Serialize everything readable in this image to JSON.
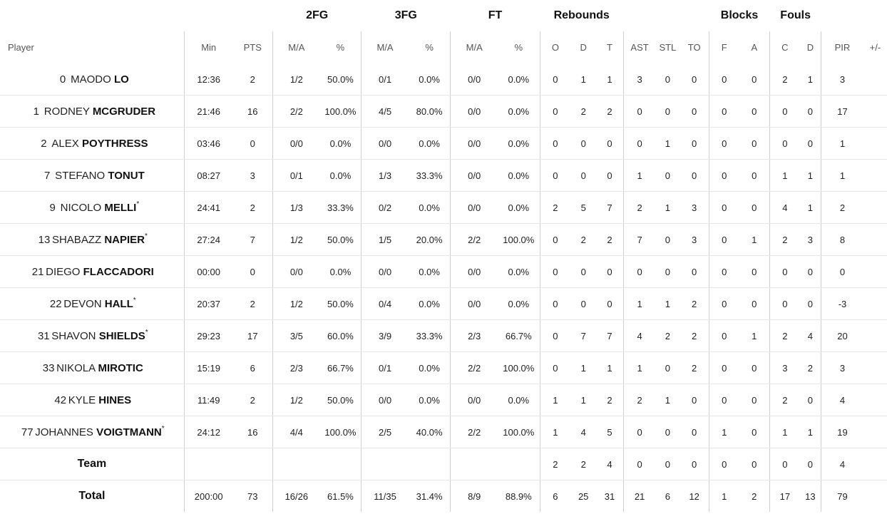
{
  "groups": {
    "fg2": "2FG",
    "fg3": "3FG",
    "ft": "FT",
    "rebounds": "Rebounds",
    "blocks": "Blocks",
    "fouls": "Fouls"
  },
  "columns": {
    "player": "Player",
    "min": "Min",
    "pts": "PTS",
    "fg2_ma": "M/A",
    "fg2_pct": "%",
    "fg3_ma": "M/A",
    "fg3_pct": "%",
    "ft_ma": "M/A",
    "ft_pct": "%",
    "reb_o": "O",
    "reb_d": "D",
    "reb_t": "T",
    "ast": "AST",
    "stl": "STL",
    "to": "TO",
    "blk_f": "F",
    "blk_a": "A",
    "foul_c": "C",
    "foul_d": "D",
    "pir": "PIR",
    "pm": "+/-"
  },
  "players": [
    {
      "num": "0",
      "first": "MAODO",
      "last": "LO",
      "star": "",
      "min": "12:36",
      "pts": "2",
      "fg2_ma": "1/2",
      "fg2_pct": "50.0%",
      "fg3_ma": "0/1",
      "fg3_pct": "0.0%",
      "ft_ma": "0/0",
      "ft_pct": "0.0%",
      "o": "0",
      "d": "1",
      "t": "1",
      "ast": "3",
      "stl": "0",
      "to": "0",
      "bf": "0",
      "ba": "0",
      "fc": "2",
      "fd": "1",
      "pir": "3",
      "pm": ""
    },
    {
      "num": "1",
      "first": "RODNEY",
      "last": "MCGRUDER",
      "star": "",
      "min": "21:46",
      "pts": "16",
      "fg2_ma": "2/2",
      "fg2_pct": "100.0%",
      "fg3_ma": "4/5",
      "fg3_pct": "80.0%",
      "ft_ma": "0/0",
      "ft_pct": "0.0%",
      "o": "0",
      "d": "2",
      "t": "2",
      "ast": "0",
      "stl": "0",
      "to": "0",
      "bf": "0",
      "ba": "0",
      "fc": "0",
      "fd": "0",
      "pir": "17",
      "pm": ""
    },
    {
      "num": "2",
      "first": "ALEX",
      "last": "POYTHRESS",
      "star": "",
      "min": "03:46",
      "pts": "0",
      "fg2_ma": "0/0",
      "fg2_pct": "0.0%",
      "fg3_ma": "0/0",
      "fg3_pct": "0.0%",
      "ft_ma": "0/0",
      "ft_pct": "0.0%",
      "o": "0",
      "d": "0",
      "t": "0",
      "ast": "0",
      "stl": "1",
      "to": "0",
      "bf": "0",
      "ba": "0",
      "fc": "0",
      "fd": "0",
      "pir": "1",
      "pm": ""
    },
    {
      "num": "7",
      "first": "STEFANO",
      "last": "TONUT",
      "star": "",
      "min": "08:27",
      "pts": "3",
      "fg2_ma": "0/1",
      "fg2_pct": "0.0%",
      "fg3_ma": "1/3",
      "fg3_pct": "33.3%",
      "ft_ma": "0/0",
      "ft_pct": "0.0%",
      "o": "0",
      "d": "0",
      "t": "0",
      "ast": "1",
      "stl": "0",
      "to": "0",
      "bf": "0",
      "ba": "0",
      "fc": "1",
      "fd": "1",
      "pir": "1",
      "pm": ""
    },
    {
      "num": "9",
      "first": "NICOLO",
      "last": "MELLI",
      "star": "*",
      "min": "24:41",
      "pts": "2",
      "fg2_ma": "1/3",
      "fg2_pct": "33.3%",
      "fg3_ma": "0/2",
      "fg3_pct": "0.0%",
      "ft_ma": "0/0",
      "ft_pct": "0.0%",
      "o": "2",
      "d": "5",
      "t": "7",
      "ast": "2",
      "stl": "1",
      "to": "3",
      "bf": "0",
      "ba": "0",
      "fc": "4",
      "fd": "1",
      "pir": "2",
      "pm": ""
    },
    {
      "num": "13",
      "first": "SHABAZZ",
      "last": "NAPIER",
      "star": "*",
      "min": "27:24",
      "pts": "7",
      "fg2_ma": "1/2",
      "fg2_pct": "50.0%",
      "fg3_ma": "1/5",
      "fg3_pct": "20.0%",
      "ft_ma": "2/2",
      "ft_pct": "100.0%",
      "o": "0",
      "d": "2",
      "t": "2",
      "ast": "7",
      "stl": "0",
      "to": "3",
      "bf": "0",
      "ba": "1",
      "fc": "2",
      "fd": "3",
      "pir": "8",
      "pm": ""
    },
    {
      "num": "21",
      "first": "DIEGO",
      "last": "FLACCADORI",
      "star": "",
      "min": "00:00",
      "pts": "0",
      "fg2_ma": "0/0",
      "fg2_pct": "0.0%",
      "fg3_ma": "0/0",
      "fg3_pct": "0.0%",
      "ft_ma": "0/0",
      "ft_pct": "0.0%",
      "o": "0",
      "d": "0",
      "t": "0",
      "ast": "0",
      "stl": "0",
      "to": "0",
      "bf": "0",
      "ba": "0",
      "fc": "0",
      "fd": "0",
      "pir": "0",
      "pm": ""
    },
    {
      "num": "22",
      "first": "DEVON",
      "last": "HALL",
      "star": "*",
      "min": "20:37",
      "pts": "2",
      "fg2_ma": "1/2",
      "fg2_pct": "50.0%",
      "fg3_ma": "0/4",
      "fg3_pct": "0.0%",
      "ft_ma": "0/0",
      "ft_pct": "0.0%",
      "o": "0",
      "d": "0",
      "t": "0",
      "ast": "1",
      "stl": "1",
      "to": "2",
      "bf": "0",
      "ba": "0",
      "fc": "0",
      "fd": "0",
      "pir": "-3",
      "pm": ""
    },
    {
      "num": "31",
      "first": "SHAVON",
      "last": "SHIELDS",
      "star": "*",
      "min": "29:23",
      "pts": "17",
      "fg2_ma": "3/5",
      "fg2_pct": "60.0%",
      "fg3_ma": "3/9",
      "fg3_pct": "33.3%",
      "ft_ma": "2/3",
      "ft_pct": "66.7%",
      "o": "0",
      "d": "7",
      "t": "7",
      "ast": "4",
      "stl": "2",
      "to": "2",
      "bf": "0",
      "ba": "1",
      "fc": "2",
      "fd": "4",
      "pir": "20",
      "pm": ""
    },
    {
      "num": "33",
      "first": "NIKOLA",
      "last": "MIROTIC",
      "star": "",
      "min": "15:19",
      "pts": "6",
      "fg2_ma": "2/3",
      "fg2_pct": "66.7%",
      "fg3_ma": "0/1",
      "fg3_pct": "0.0%",
      "ft_ma": "2/2",
      "ft_pct": "100.0%",
      "o": "0",
      "d": "1",
      "t": "1",
      "ast": "1",
      "stl": "0",
      "to": "2",
      "bf": "0",
      "ba": "0",
      "fc": "3",
      "fd": "2",
      "pir": "3",
      "pm": ""
    },
    {
      "num": "42",
      "first": "KYLE",
      "last": "HINES",
      "star": "",
      "min": "11:49",
      "pts": "2",
      "fg2_ma": "1/2",
      "fg2_pct": "50.0%",
      "fg3_ma": "0/0",
      "fg3_pct": "0.0%",
      "ft_ma": "0/0",
      "ft_pct": "0.0%",
      "o": "1",
      "d": "1",
      "t": "2",
      "ast": "2",
      "stl": "1",
      "to": "0",
      "bf": "0",
      "ba": "0",
      "fc": "2",
      "fd": "0",
      "pir": "4",
      "pm": ""
    },
    {
      "num": "77",
      "first": "JOHANNES",
      "last": "VOIGTMANN",
      "star": "*",
      "min": "24:12",
      "pts": "16",
      "fg2_ma": "4/4",
      "fg2_pct": "100.0%",
      "fg3_ma": "2/5",
      "fg3_pct": "40.0%",
      "ft_ma": "2/2",
      "ft_pct": "100.0%",
      "o": "1",
      "d": "4",
      "t": "5",
      "ast": "0",
      "stl": "0",
      "to": "0",
      "bf": "1",
      "ba": "0",
      "fc": "1",
      "fd": "1",
      "pir": "19",
      "pm": ""
    }
  ],
  "team": {
    "label": "Team",
    "min": "",
    "pts": "",
    "fg2_ma": "",
    "fg2_pct": "",
    "fg3_ma": "",
    "fg3_pct": "",
    "ft_ma": "",
    "ft_pct": "",
    "o": "2",
    "d": "2",
    "t": "4",
    "ast": "0",
    "stl": "0",
    "to": "0",
    "bf": "0",
    "ba": "0",
    "fc": "0",
    "fd": "0",
    "pir": "4",
    "pm": ""
  },
  "total": {
    "label": "Total",
    "min": "200:00",
    "pts": "73",
    "fg2_ma": "16/26",
    "fg2_pct": "61.5%",
    "fg3_ma": "11/35",
    "fg3_pct": "31.4%",
    "ft_ma": "8/9",
    "ft_pct": "88.9%",
    "o": "6",
    "d": "25",
    "t": "31",
    "ast": "21",
    "stl": "6",
    "to": "12",
    "bf": "1",
    "ba": "2",
    "fc": "17",
    "fd": "13",
    "pir": "79",
    "pm": ""
  }
}
